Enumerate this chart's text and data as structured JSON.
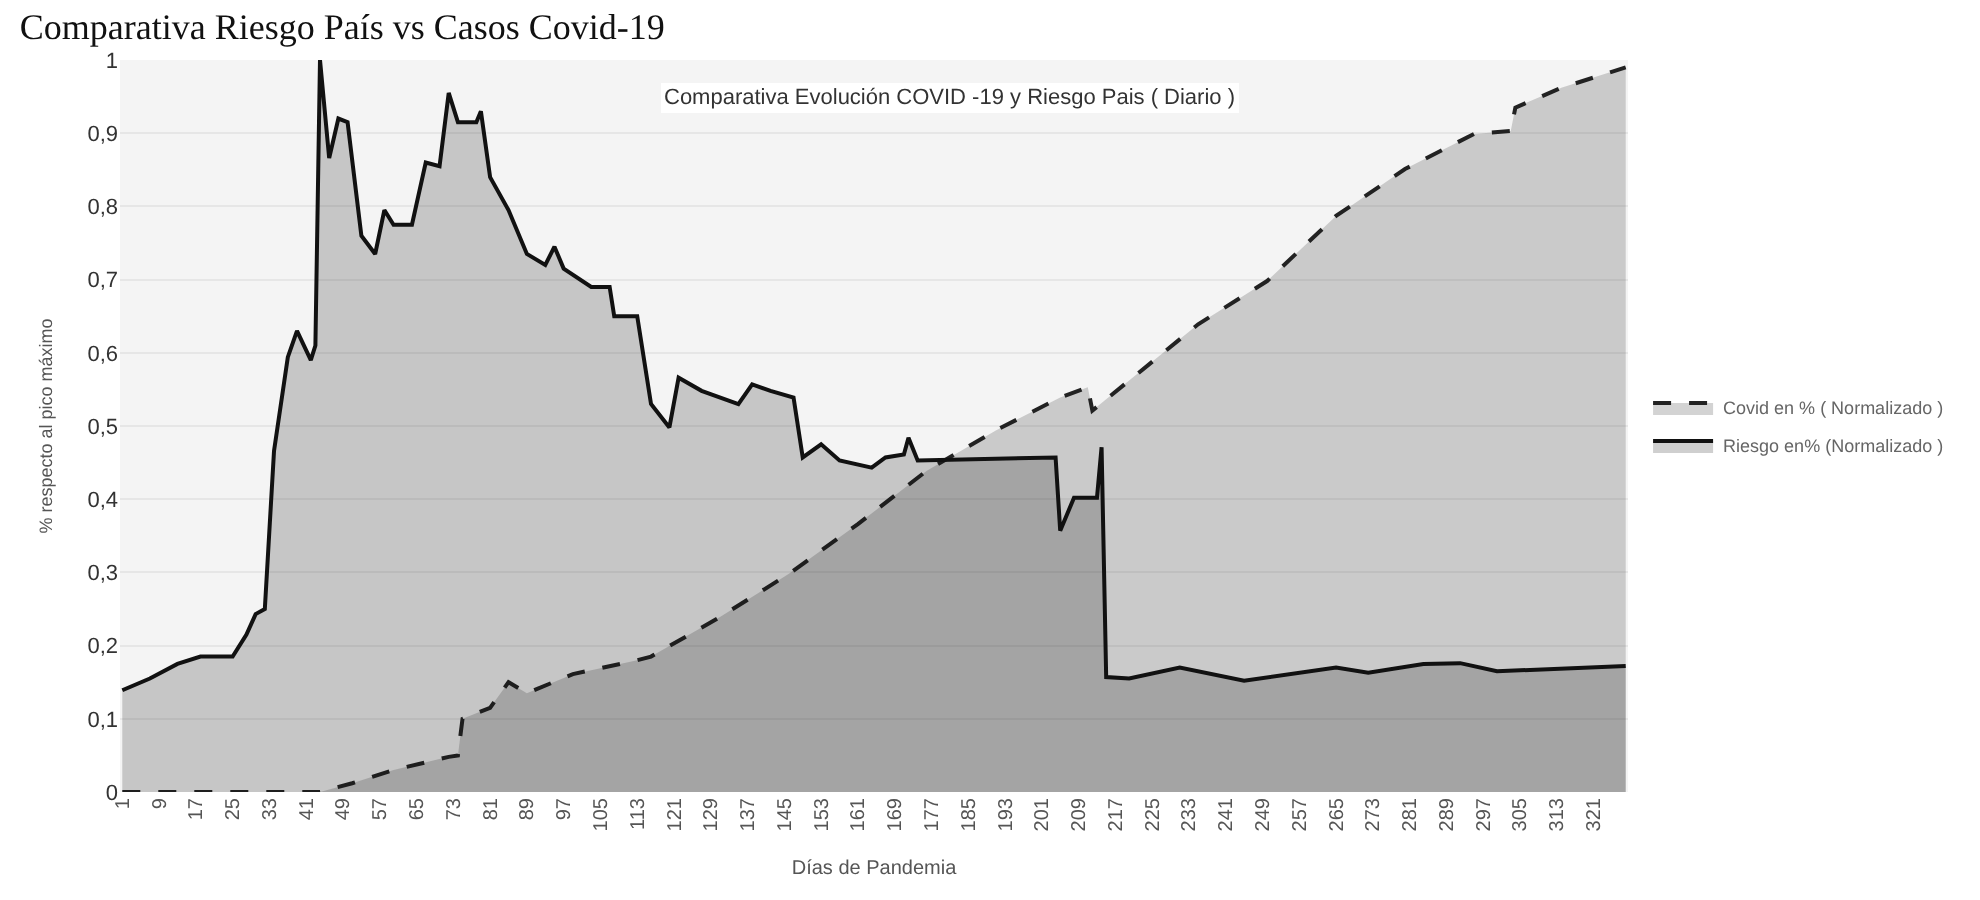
{
  "chart_data": {
    "type": "area",
    "title": "Comparativa Riesgo País vs Casos Covid-19",
    "subtitle": "Comparativa Evolución COVID -19 y Riesgo Pais ( Diario )",
    "xlabel": "Días de Pandemia",
    "ylabel": "% respecto al pico máximo",
    "series": [
      {
        "name": "Covid en % ( Normalizado )",
        "color": "#222222",
        "line_style": "dashed",
        "x": [
          1,
          44,
          51,
          60,
          72,
          74,
          75,
          81,
          85,
          89,
          99,
          113,
          116,
          131,
          146,
          161,
          176,
          191,
          205,
          211,
          212,
          220,
          235,
          250,
          265,
          280,
          295,
          303,
          304,
          314,
          328
        ],
        "values": [
          0,
          0,
          0.012,
          0.03,
          0.048,
          0.05,
          0.1,
          0.115,
          0.15,
          0.135,
          0.161,
          0.18,
          0.185,
          0.239,
          0.298,
          0.366,
          0.439,
          0.494,
          0.539,
          0.553,
          0.521,
          0.562,
          0.639,
          0.698,
          0.787,
          0.851,
          0.899,
          0.903,
          0.935,
          0.962,
          0.99
        ]
      },
      {
        "name": "Riesgo en% (Normalizado )",
        "color": "#111111",
        "line_style": "solid",
        "x": [
          1,
          7,
          13,
          18,
          25,
          28,
          30,
          32,
          34,
          37,
          39,
          42,
          43,
          44,
          46,
          48,
          50,
          53,
          56,
          58,
          60,
          64,
          67,
          70,
          72,
          74,
          78,
          79,
          81,
          85,
          89,
          93,
          95,
          97,
          103,
          107,
          108,
          113,
          116,
          120,
          122,
          127,
          135,
          138,
          142,
          147,
          149,
          153,
          157,
          164,
          167,
          171,
          172,
          174,
          204,
          205,
          208,
          213,
          214,
          215,
          220,
          231,
          245,
          265,
          272,
          284,
          292,
          300,
          328
        ],
        "values": [
          0.139,
          0.155,
          0.175,
          0.185,
          0.185,
          0.215,
          0.243,
          0.25,
          0.466,
          0.594,
          0.63,
          0.59,
          0.61,
          1.0,
          0.866,
          0.92,
          0.915,
          0.76,
          0.735,
          0.795,
          0.775,
          0.775,
          0.86,
          0.855,
          0.955,
          0.915,
          0.915,
          0.93,
          0.84,
          0.795,
          0.735,
          0.72,
          0.745,
          0.715,
          0.69,
          0.69,
          0.65,
          0.65,
          0.53,
          0.498,
          0.566,
          0.548,
          0.53,
          0.557,
          0.548,
          0.539,
          0.457,
          0.475,
          0.453,
          0.443,
          0.457,
          0.461,
          0.484,
          0.453,
          0.457,
          0.357,
          0.402,
          0.402,
          0.471,
          0.157,
          0.155,
          0.17,
          0.152,
          0.17,
          0.163,
          0.175,
          0.176,
          0.165,
          0.172
        ]
      }
    ],
    "xlim": [
      0.5,
      328.5
    ],
    "xticks": [
      1,
      9,
      17,
      25,
      33,
      41,
      49,
      57,
      65,
      73,
      81,
      89,
      97,
      105,
      113,
      121,
      129,
      137,
      145,
      153,
      161,
      169,
      177,
      185,
      193,
      201,
      209,
      217,
      225,
      233,
      241,
      249,
      257,
      265,
      273,
      281,
      289,
      297,
      305,
      313,
      321
    ],
    "ylim": [
      0,
      1
    ],
    "yticks": [
      0,
      {
        "value": 0.1,
        "label": "0,1"
      },
      {
        "value": 0.2,
        "label": "0,2"
      },
      {
        "value": 0.3,
        "label": "0,3"
      },
      {
        "value": 0.4,
        "label": "0,4"
      },
      {
        "value": 0.5,
        "label": "0,5"
      },
      {
        "value": 0.6,
        "label": "0,6"
      },
      {
        "value": 0.7,
        "label": "0,7"
      },
      {
        "value": 0.8,
        "label": "0,8"
      },
      {
        "value": 0.9,
        "label": "0,9"
      },
      1
    ],
    "grid": "y",
    "legend": "right",
    "marker": "none"
  }
}
